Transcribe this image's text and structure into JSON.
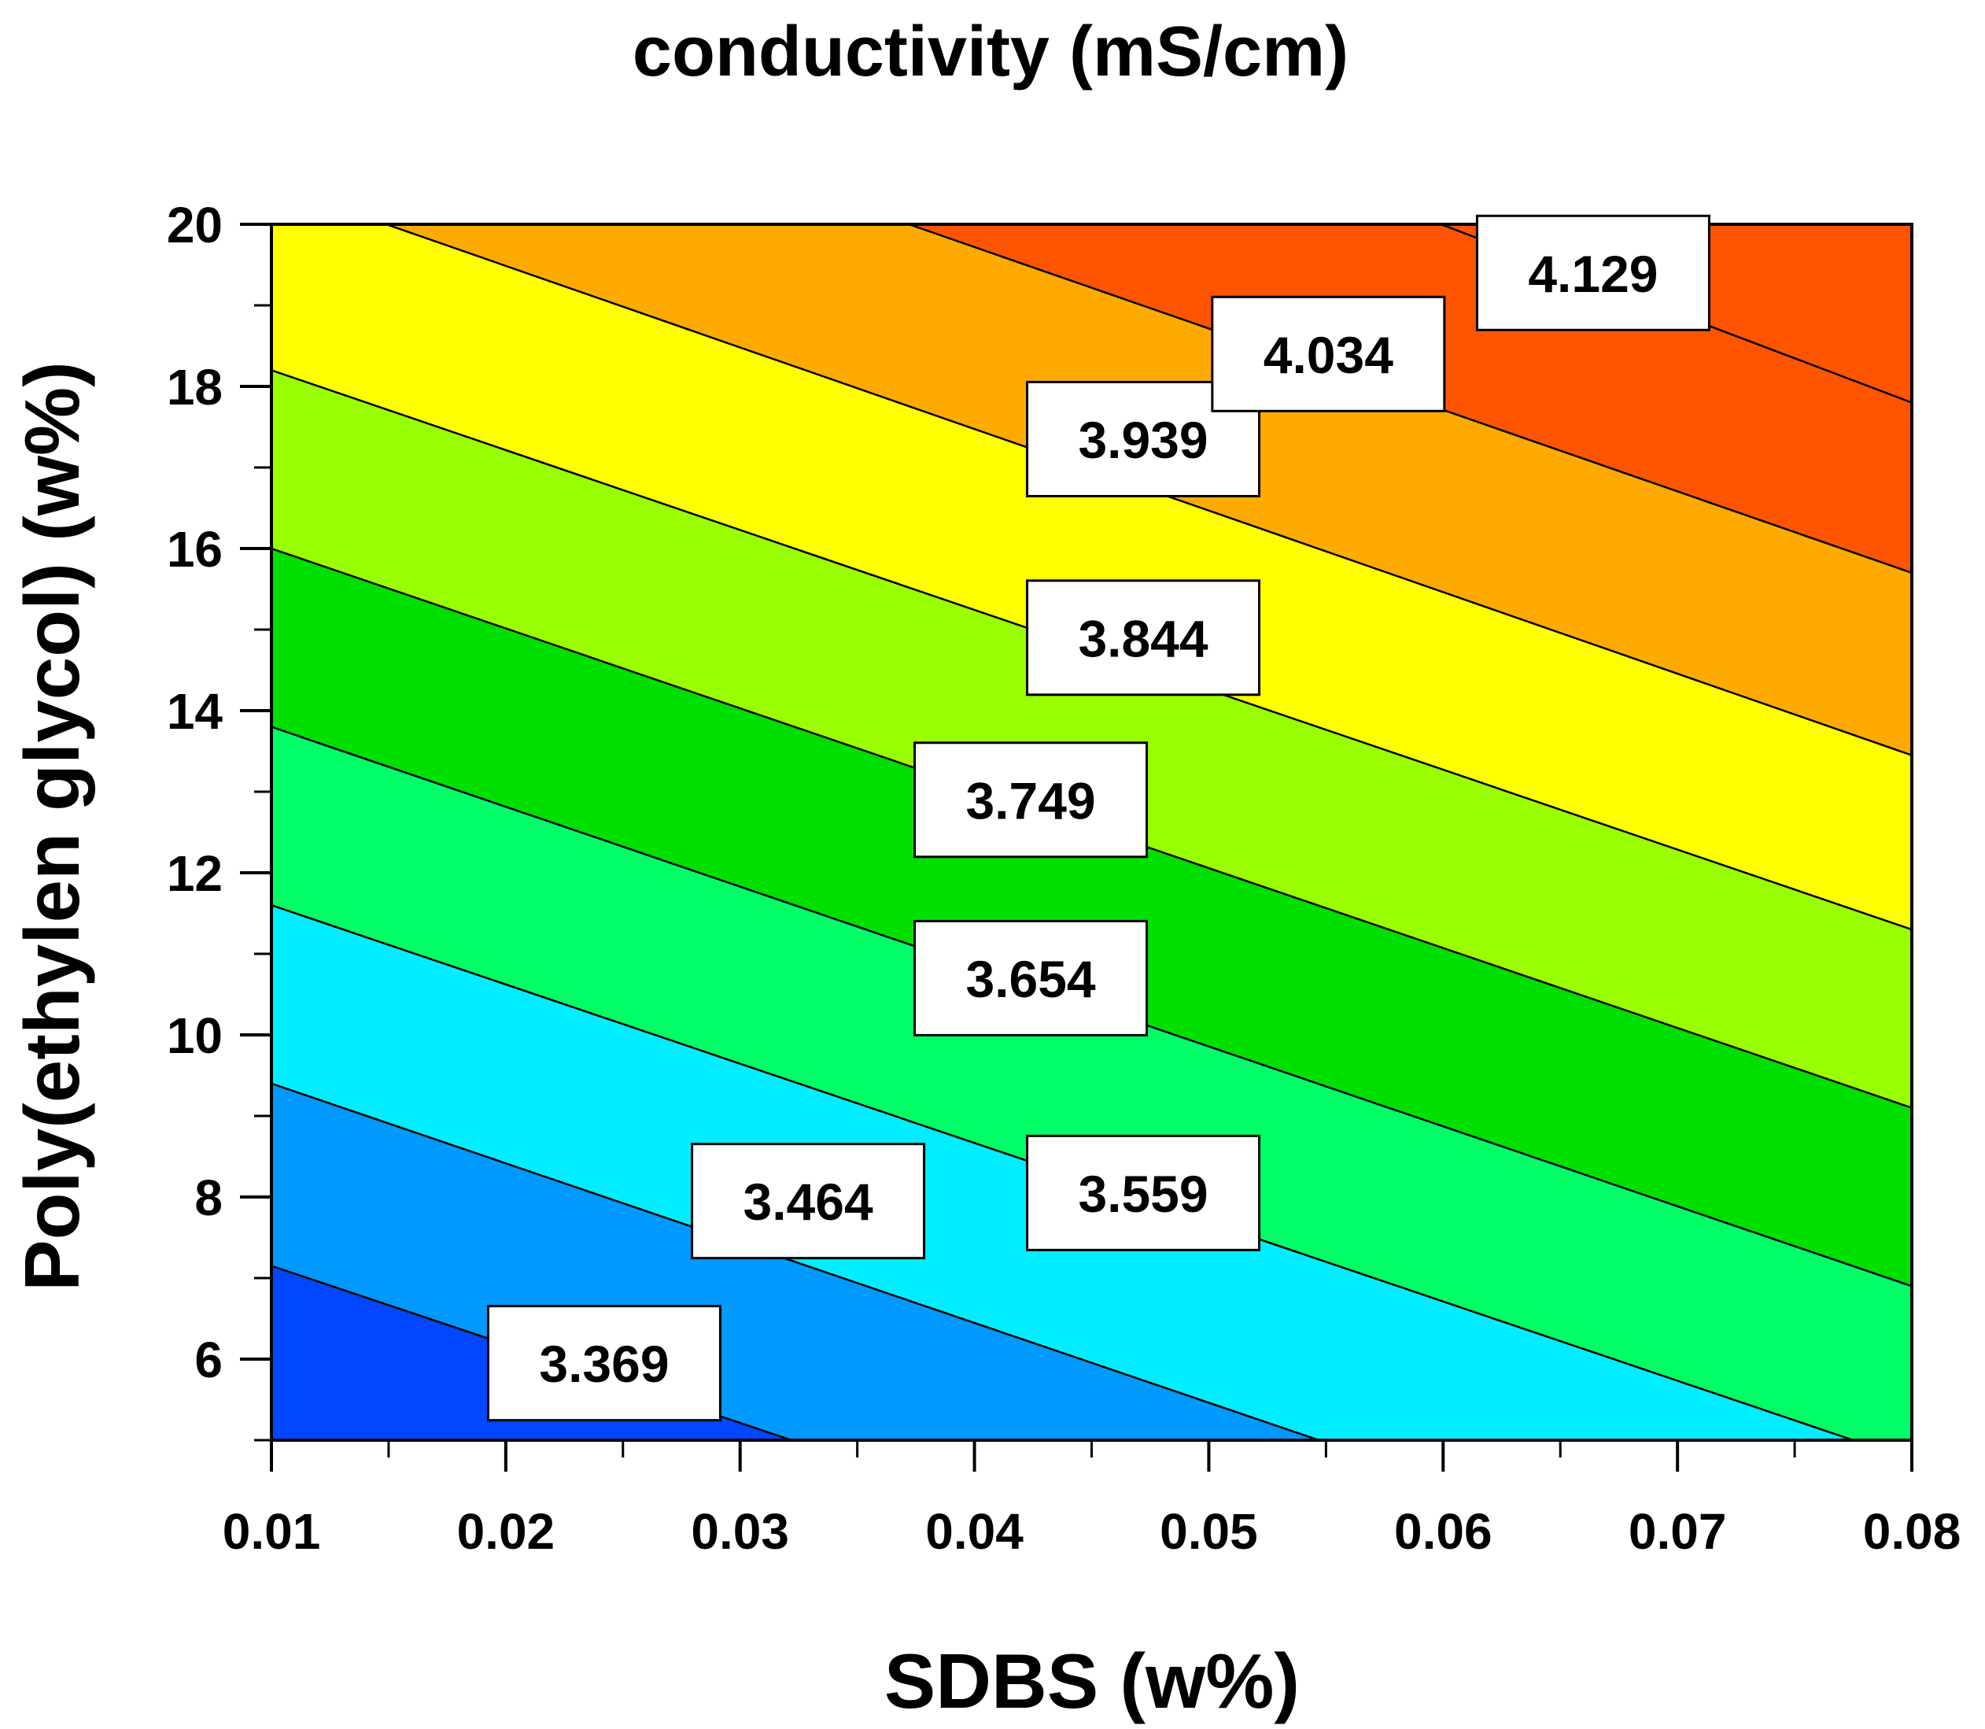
{
  "chart_data": {
    "type": "contour",
    "title": "conductivity (mS/cm)",
    "xlabel": "SDBS (w%)",
    "ylabel": "Poly(ethylen glycol) (w%)",
    "xlim": [
      0.01,
      0.08
    ],
    "ylim": [
      5,
      20
    ],
    "x_ticks": [
      0.01,
      0.02,
      0.03,
      0.04,
      0.05,
      0.06,
      0.07,
      0.08
    ],
    "x_tick_labels": [
      "0.01",
      "0.02",
      "0.03",
      "0.04",
      "0.05",
      "0.06",
      "0.07",
      "0.08"
    ],
    "y_ticks": [
      6,
      8,
      10,
      12,
      14,
      16,
      18,
      20
    ],
    "y_tick_labels": [
      "6",
      "8",
      "10",
      "12",
      "14",
      "16",
      "18",
      "20"
    ],
    "z_range": [
      3.3,
      4.2
    ],
    "contour_levels": [
      3.369,
      3.464,
      3.559,
      3.654,
      3.749,
      3.844,
      3.939,
      4.034,
      4.129
    ],
    "contour_labels": [
      "3.369",
      "3.464",
      "3.559",
      "3.654",
      "3.749",
      "3.844",
      "3.939",
      "4.034",
      "4.129"
    ],
    "band_colors": [
      "#0047ff",
      "#0099ff",
      "#00eeff",
      "#00ff66",
      "#00e000",
      "#99ff00",
      "#ffff00",
      "#ffaa00",
      "#ff5500"
    ],
    "contours": [
      {
        "level": 3.369,
        "label": "3.369",
        "points": [
          [
            0.01,
            7.15
          ],
          [
            0.0322,
            5.0
          ]
        ],
        "label_at": [
          0.0242,
          5.95
        ]
      },
      {
        "level": 3.464,
        "label": "3.464",
        "points": [
          [
            0.01,
            9.4
          ],
          [
            0.0547,
            5.0
          ]
        ],
        "label_at": [
          0.0329,
          7.95
        ]
      },
      {
        "level": 3.559,
        "label": "3.559",
        "points": [
          [
            0.01,
            11.6
          ],
          [
            0.0775,
            5.0
          ]
        ],
        "label_at": [
          0.0472,
          8.05
        ]
      },
      {
        "level": 3.654,
        "label": "3.654",
        "points": [
          [
            0.01,
            13.8
          ],
          [
            0.08,
            6.9
          ]
        ],
        "label_at": [
          0.0424,
          10.7
        ]
      },
      {
        "level": 3.749,
        "label": "3.749",
        "points": [
          [
            0.01,
            16.0
          ],
          [
            0.08,
            9.1
          ]
        ],
        "label_at": [
          0.0424,
          12.9
        ]
      },
      {
        "level": 3.844,
        "label": "3.844",
        "points": [
          [
            0.01,
            18.2
          ],
          [
            0.08,
            11.3
          ]
        ],
        "label_at": [
          0.0472,
          14.9
        ]
      },
      {
        "level": 3.939,
        "label": "3.939",
        "points": [
          [
            0.0149,
            20.0
          ],
          [
            0.08,
            13.45
          ]
        ],
        "label_at": [
          0.0472,
          17.35
        ]
      },
      {
        "level": 4.034,
        "label": "4.034",
        "points": [
          [
            0.0372,
            20.0
          ],
          [
            0.08,
            15.7
          ]
        ],
        "label_at": [
          0.0551,
          18.4
        ]
      },
      {
        "level": 4.129,
        "label": "4.129",
        "points": [
          [
            0.0599,
            20.0
          ],
          [
            0.08,
            17.8
          ]
        ],
        "label_at": [
          0.0664,
          19.4
        ]
      }
    ]
  }
}
